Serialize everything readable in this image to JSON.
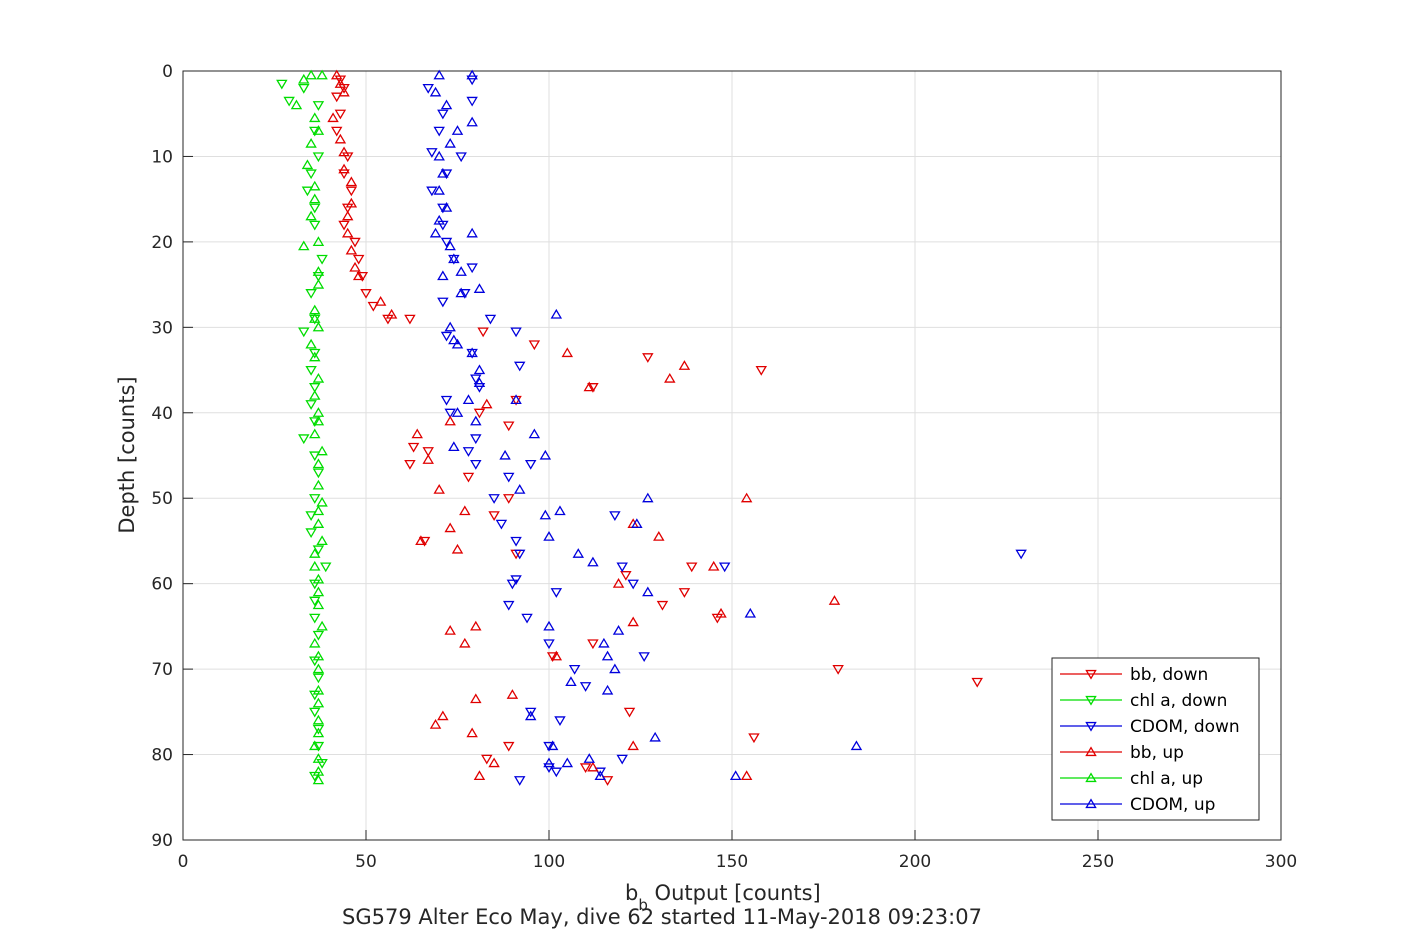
{
  "chart_data": {
    "type": "scatter",
    "xlabel_main": "b",
    "xlabel_sub": "b",
    "xlabel_rest": " Output [counts]",
    "ylabel": "Depth [counts]",
    "caption": "SG579 Alter Eco May, dive 62 started 11-May-2018 09:23:07",
    "xlim": [
      0,
      300
    ],
    "ylim": [
      0,
      90
    ],
    "y_reversed": true,
    "grid": true,
    "legend_position": "bottom-right",
    "x_ticks": [
      "0",
      "50",
      "100",
      "150",
      "200",
      "250",
      "300"
    ],
    "y_ticks": [
      "0",
      "10",
      "20",
      "30",
      "40",
      "50",
      "60",
      "70",
      "80",
      "90"
    ],
    "series": [
      {
        "name": "bb, down",
        "marker": "triangle-down",
        "color": "#e00000",
        "points": [
          [
            43,
            1
          ],
          [
            44,
            2
          ],
          [
            42,
            3
          ],
          [
            43,
            5
          ],
          [
            42,
            7
          ],
          [
            45,
            10
          ],
          [
            44,
            12
          ],
          [
            46,
            14
          ],
          [
            45,
            16
          ],
          [
            44,
            18
          ],
          [
            47,
            20
          ],
          [
            48,
            22
          ],
          [
            49,
            24
          ],
          [
            50,
            26
          ],
          [
            52,
            27.5
          ],
          [
            56,
            29
          ],
          [
            62,
            29
          ],
          [
            82,
            30.5
          ],
          [
            96,
            32
          ],
          [
            127,
            33.5
          ],
          [
            158,
            35
          ],
          [
            112,
            37
          ],
          [
            91,
            38.5
          ],
          [
            81,
            40
          ],
          [
            89,
            41.5
          ],
          [
            63,
            44
          ],
          [
            67,
            44.5
          ],
          [
            62,
            46
          ],
          [
            78,
            47.5
          ],
          [
            89,
            50
          ],
          [
            85,
            52
          ],
          [
            66,
            55
          ],
          [
            91,
            56.5
          ],
          [
            139,
            58
          ],
          [
            121,
            59
          ],
          [
            137,
            61
          ],
          [
            131,
            62.5
          ],
          [
            112,
            67
          ],
          [
            146,
            64
          ],
          [
            101,
            68.5
          ],
          [
            179,
            70
          ],
          [
            217,
            71.5
          ],
          [
            122,
            75
          ],
          [
            156,
            78
          ],
          [
            89,
            79
          ],
          [
            83,
            80.5
          ],
          [
            110,
            81.5
          ],
          [
            116,
            83
          ]
        ]
      },
      {
        "name": "chl a, down",
        "marker": "triangle-down",
        "color": "#00dd00",
        "points": [
          [
            27,
            1.5
          ],
          [
            29,
            3.5
          ],
          [
            33,
            2
          ],
          [
            37,
            4
          ],
          [
            36,
            7
          ],
          [
            37,
            10
          ],
          [
            35,
            12
          ],
          [
            34,
            14
          ],
          [
            36,
            16
          ],
          [
            36,
            18
          ],
          [
            38,
            22
          ],
          [
            37,
            24
          ],
          [
            35,
            26
          ],
          [
            36,
            29
          ],
          [
            33,
            30.5
          ],
          [
            36,
            33
          ],
          [
            35,
            35
          ],
          [
            36,
            37
          ],
          [
            35,
            39
          ],
          [
            36,
            41
          ],
          [
            33,
            43
          ],
          [
            36,
            45
          ],
          [
            37,
            47
          ],
          [
            36,
            50
          ],
          [
            35,
            52
          ],
          [
            35,
            54
          ],
          [
            37,
            56
          ],
          [
            39,
            58
          ],
          [
            36,
            60
          ],
          [
            36,
            62
          ],
          [
            36,
            64
          ],
          [
            37,
            66
          ],
          [
            36,
            69
          ],
          [
            37,
            71
          ],
          [
            36,
            73
          ],
          [
            36,
            75
          ],
          [
            37,
            77
          ],
          [
            37,
            79
          ],
          [
            38,
            81
          ],
          [
            36,
            82.5
          ]
        ]
      },
      {
        "name": "CDOM, down",
        "marker": "triangle-down",
        "color": "#0000dd",
        "points": [
          [
            79,
            1
          ],
          [
            67,
            2
          ],
          [
            79,
            3.5
          ],
          [
            71,
            5
          ],
          [
            70,
            7
          ],
          [
            68,
            9.5
          ],
          [
            76,
            10
          ],
          [
            72,
            12
          ],
          [
            68,
            14
          ],
          [
            71,
            16
          ],
          [
            71,
            18
          ],
          [
            72,
            20
          ],
          [
            74,
            22
          ],
          [
            79,
            23
          ],
          [
            77,
            26
          ],
          [
            71,
            27
          ],
          [
            84,
            29
          ],
          [
            91,
            30.5
          ],
          [
            72,
            31
          ],
          [
            79,
            33
          ],
          [
            92,
            34.5
          ],
          [
            80,
            36
          ],
          [
            81,
            37
          ],
          [
            72,
            38.5
          ],
          [
            73,
            40
          ],
          [
            80,
            43
          ],
          [
            78,
            44.5
          ],
          [
            80,
            46
          ],
          [
            95,
            46
          ],
          [
            89,
            47.5
          ],
          [
            85,
            50
          ],
          [
            87,
            53
          ],
          [
            91,
            55
          ],
          [
            92,
            56.5
          ],
          [
            91,
            59.5
          ],
          [
            90,
            60
          ],
          [
            102,
            61
          ],
          [
            89,
            62.5
          ],
          [
            94,
            64
          ],
          [
            100,
            67
          ],
          [
            107,
            70
          ],
          [
            110,
            72
          ],
          [
            95,
            75
          ],
          [
            103,
            76
          ],
          [
            100,
            79
          ],
          [
            100,
            81.5
          ],
          [
            102,
            82
          ],
          [
            114,
            82
          ],
          [
            92,
            83
          ],
          [
            120,
            80.5
          ],
          [
            118,
            52
          ],
          [
            120,
            58
          ],
          [
            123,
            60
          ],
          [
            126,
            68.5
          ],
          [
            148,
            58
          ],
          [
            229,
            56.5
          ]
        ]
      },
      {
        "name": "bb, up",
        "marker": "triangle-up",
        "color": "#e00000",
        "points": [
          [
            42,
            0.5
          ],
          [
            43,
            1.5
          ],
          [
            44,
            2.5
          ],
          [
            41,
            5.5
          ],
          [
            43,
            8
          ],
          [
            44,
            9.5
          ],
          [
            44,
            11.5
          ],
          [
            46,
            13
          ],
          [
            46,
            15.5
          ],
          [
            45,
            17
          ],
          [
            45,
            19
          ],
          [
            46,
            21
          ],
          [
            47,
            23
          ],
          [
            48,
            24
          ],
          [
            54,
            27
          ],
          [
            57,
            28.5
          ],
          [
            105,
            33
          ],
          [
            137,
            34.5
          ],
          [
            133,
            36
          ],
          [
            111,
            37
          ],
          [
            83,
            39
          ],
          [
            73,
            41
          ],
          [
            64,
            42.5
          ],
          [
            67,
            45.5
          ],
          [
            70,
            49
          ],
          [
            77,
            51.5
          ],
          [
            73,
            53.5
          ],
          [
            65,
            55
          ],
          [
            75,
            56
          ],
          [
            154,
            50
          ],
          [
            123,
            53
          ],
          [
            130,
            54.5
          ],
          [
            119,
            60
          ],
          [
            145,
            58
          ],
          [
            123,
            64.5
          ],
          [
            147,
            63.5
          ],
          [
            178,
            62
          ],
          [
            80,
            65
          ],
          [
            77,
            67
          ],
          [
            102,
            68.5
          ],
          [
            73,
            65.5
          ],
          [
            90,
            73
          ],
          [
            80,
            73.5
          ],
          [
            71,
            75.5
          ],
          [
            69,
            76.5
          ],
          [
            79,
            77.5
          ],
          [
            123,
            79
          ],
          [
            85,
            81
          ],
          [
            112,
            81.5
          ],
          [
            81,
            82.5
          ],
          [
            154,
            82.5
          ]
        ]
      },
      {
        "name": "chl a, up",
        "marker": "triangle-up",
        "color": "#00dd00",
        "points": [
          [
            38,
            0.5
          ],
          [
            35,
            0.5
          ],
          [
            33,
            1
          ],
          [
            31,
            4
          ],
          [
            36,
            5.5
          ],
          [
            37,
            7
          ],
          [
            35,
            8.5
          ],
          [
            34,
            11
          ],
          [
            36,
            13.5
          ],
          [
            36,
            15
          ],
          [
            35,
            17
          ],
          [
            37,
            20
          ],
          [
            33,
            20.5
          ],
          [
            37,
            23.5
          ],
          [
            37,
            25
          ],
          [
            36,
            28
          ],
          [
            36,
            29
          ],
          [
            37,
            30
          ],
          [
            35,
            32
          ],
          [
            36,
            33.5
          ],
          [
            37,
            36
          ],
          [
            36,
            38
          ],
          [
            37,
            40
          ],
          [
            37,
            41
          ],
          [
            36,
            42.5
          ],
          [
            38,
            44.5
          ],
          [
            37,
            46
          ],
          [
            37,
            48.5
          ],
          [
            38,
            50.5
          ],
          [
            37,
            51.5
          ],
          [
            37,
            53
          ],
          [
            38,
            55
          ],
          [
            36,
            56.5
          ],
          [
            36,
            58
          ],
          [
            37,
            59.5
          ],
          [
            37,
            61
          ],
          [
            37,
            62.5
          ],
          [
            38,
            65
          ],
          [
            36,
            67
          ],
          [
            37,
            68.5
          ],
          [
            37,
            70
          ],
          [
            37,
            72.5
          ],
          [
            37,
            74
          ],
          [
            37,
            76
          ],
          [
            37,
            77.5
          ],
          [
            36,
            79
          ],
          [
            37,
            80.5
          ],
          [
            37,
            82
          ],
          [
            37,
            83
          ]
        ]
      },
      {
        "name": "CDOM, up",
        "marker": "triangle-up",
        "color": "#0000dd",
        "points": [
          [
            70,
            0.5
          ],
          [
            79,
            0.5
          ],
          [
            69,
            2.5
          ],
          [
            72,
            4
          ],
          [
            79,
            6
          ],
          [
            75,
            7
          ],
          [
            73,
            8.5
          ],
          [
            70,
            10
          ],
          [
            71,
            12
          ],
          [
            70,
            14
          ],
          [
            72,
            16
          ],
          [
            70,
            17.5
          ],
          [
            69,
            19
          ],
          [
            79,
            19
          ],
          [
            73,
            20.5
          ],
          [
            74,
            22
          ],
          [
            76,
            23.5
          ],
          [
            71,
            24
          ],
          [
            81,
            25.5
          ],
          [
            76,
            26
          ],
          [
            102,
            28.5
          ],
          [
            73,
            30
          ],
          [
            74,
            31.5
          ],
          [
            75,
            32
          ],
          [
            79,
            33
          ],
          [
            81,
            35
          ],
          [
            81,
            36.5
          ],
          [
            78,
            38.5
          ],
          [
            75,
            40
          ],
          [
            80,
            41
          ],
          [
            91,
            38.5
          ],
          [
            96,
            42.5
          ],
          [
            74,
            44
          ],
          [
            99,
            45
          ],
          [
            88,
            45
          ],
          [
            92,
            49
          ],
          [
            103,
            51.5
          ],
          [
            99,
            52
          ],
          [
            127,
            50
          ],
          [
            124,
            53
          ],
          [
            100,
            54.5
          ],
          [
            108,
            56.5
          ],
          [
            112,
            57.5
          ],
          [
            127,
            61
          ],
          [
            155,
            63.5
          ],
          [
            119,
            65.5
          ],
          [
            100,
            65
          ],
          [
            115,
            67
          ],
          [
            116,
            68.5
          ],
          [
            118,
            70
          ],
          [
            106,
            71.5
          ],
          [
            116,
            72.5
          ],
          [
            95,
            75.5
          ],
          [
            129,
            78
          ],
          [
            101,
            79
          ],
          [
            184,
            79
          ],
          [
            111,
            80.5
          ],
          [
            105,
            81
          ],
          [
            151,
            82.5
          ],
          [
            114,
            82.5
          ],
          [
            100,
            81
          ]
        ]
      }
    ]
  }
}
